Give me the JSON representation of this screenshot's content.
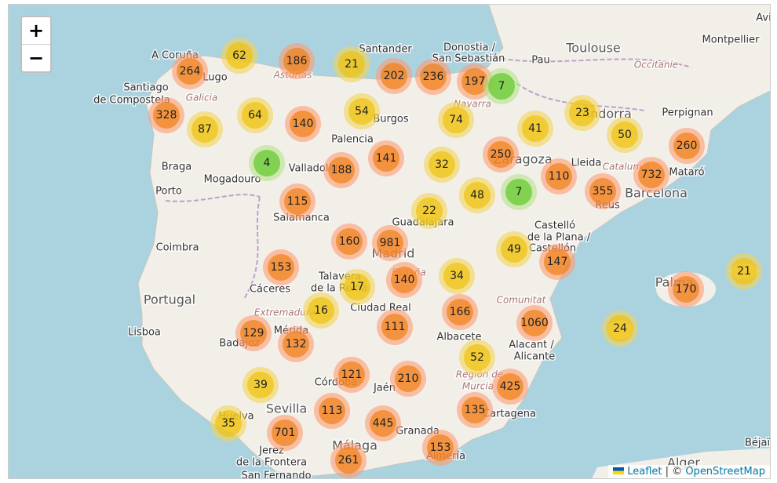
{
  "map": {
    "zoom_in": "+",
    "zoom_out": "−",
    "clusters": [
      {
        "count": 264
      },
      {
        "count": 62
      },
      {
        "count": 186
      },
      {
        "count": 21
      },
      {
        "count": 202
      },
      {
        "count": 236
      },
      {
        "count": 197
      },
      {
        "count": 7
      },
      {
        "count": 328
      },
      {
        "count": 87
      },
      {
        "count": 64
      },
      {
        "count": 140
      },
      {
        "count": 54
      },
      {
        "count": 74
      },
      {
        "count": 41
      },
      {
        "count": 23
      },
      {
        "count": 50
      },
      {
        "count": 260
      },
      {
        "count": 4
      },
      {
        "count": 188
      },
      {
        "count": 141
      },
      {
        "count": 32
      },
      {
        "count": 250
      },
      {
        "count": 110
      },
      {
        "count": 732
      },
      {
        "count": 355
      },
      {
        "count": 48
      },
      {
        "count": 7
      },
      {
        "count": 115
      },
      {
        "count": 22
      },
      {
        "count": 160
      },
      {
        "count": 981
      },
      {
        "count": 49
      },
      {
        "count": 147
      },
      {
        "count": 153
      },
      {
        "count": 17
      },
      {
        "count": 140
      },
      {
        "count": 34
      },
      {
        "count": 21
      },
      {
        "count": 170
      },
      {
        "count": 16
      },
      {
        "count": 166
      },
      {
        "count": 1060
      },
      {
        "count": 129
      },
      {
        "count": 111
      },
      {
        "count": 132
      },
      {
        "count": 24
      },
      {
        "count": 52
      },
      {
        "count": 121
      },
      {
        "count": 210
      },
      {
        "count": 425
      },
      {
        "count": 39
      },
      {
        "count": 113
      },
      {
        "count": 135
      },
      {
        "count": 445
      },
      {
        "count": 35
      },
      {
        "count": 701
      },
      {
        "count": 153
      },
      {
        "count": 261
      }
    ],
    "places": [
      {
        "name": "A Coruña"
      },
      {
        "name": "Lugo"
      },
      {
        "name": "Santiago"
      },
      {
        "name": "de Compostela"
      },
      {
        "name": "Galicia"
      },
      {
        "name": "Braga"
      },
      {
        "name": "Porto"
      },
      {
        "name": "Mogadouro"
      },
      {
        "name": "Coimbra"
      },
      {
        "name": "Portugal"
      },
      {
        "name": "Lisboa"
      },
      {
        "name": "Santander"
      },
      {
        "name": "Donostia /"
      },
      {
        "name": "San Sebastián"
      },
      {
        "name": "Pau"
      },
      {
        "name": "Toulouse"
      },
      {
        "name": "Occitanie"
      },
      {
        "name": "Montpellier"
      },
      {
        "name": "Avi"
      },
      {
        "name": "Andorra"
      },
      {
        "name": "Perpignan"
      },
      {
        "name": "Lleida"
      },
      {
        "name": "Catalunya"
      },
      {
        "name": "Mataró"
      },
      {
        "name": "Barcelona"
      },
      {
        "name": "Reus"
      },
      {
        "name": "Zaragoza"
      },
      {
        "name": "Burgos"
      },
      {
        "name": "Palencia"
      },
      {
        "name": "Valladolid"
      },
      {
        "name": "Salamanca"
      },
      {
        "name": "Guadalajara"
      },
      {
        "name": "Madrid"
      },
      {
        "name": "Talavera"
      },
      {
        "name": "de la Reina"
      },
      {
        "name": "Cáceres"
      },
      {
        "name": "Extremadura"
      },
      {
        "name": "Mérida"
      },
      {
        "name": "Badajoz"
      },
      {
        "name": "Ciudad Real"
      },
      {
        "name": "Castelló"
      },
      {
        "name": "de la Plana /"
      },
      {
        "name": "Castellón"
      },
      {
        "name": "Comunitat"
      },
      {
        "name": "Albacete"
      },
      {
        "name": "Alacant /"
      },
      {
        "name": "Alicante"
      },
      {
        "name": "Región de"
      },
      {
        "name": "Murcia"
      },
      {
        "name": "Cartagena"
      },
      {
        "name": "Córdoba"
      },
      {
        "name": "Jaén"
      },
      {
        "name": "Sevilla"
      },
      {
        "name": "Huelva"
      },
      {
        "name": "Granada"
      },
      {
        "name": "Málaga"
      },
      {
        "name": "Almería"
      },
      {
        "name": "Jerez"
      },
      {
        "name": "de la Frontera"
      },
      {
        "name": "San Fernando"
      },
      {
        "name": "Palma"
      },
      {
        "name": "Béjaïa"
      },
      {
        "name": "Alger"
      },
      {
        "name": "Asturias"
      },
      {
        "name": "Navarra"
      },
      {
        "name": "España"
      }
    ]
  },
  "attribution": {
    "leaflet": "Leaflet",
    "separator": "|",
    "copyright": "©",
    "osm": "OpenStreetMap"
  }
}
